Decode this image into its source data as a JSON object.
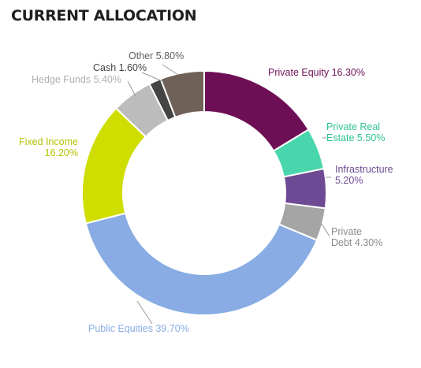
{
  "title": "CURRENT ALLOCATION",
  "chart_data": {
    "type": "pie",
    "title": "CURRENT ALLOCATION",
    "donut": true,
    "legend": "none",
    "unit": "%",
    "slices": [
      {
        "name": "Private Equity",
        "value": 16.3,
        "display": "16.30%",
        "color": "#6e0f56",
        "label_color": "#6e0f56",
        "label_lines": [
          "Private Equity 16.30%"
        ]
      },
      {
        "name": "Private Real Estate",
        "value": 5.5,
        "display": "5.50%",
        "color": "#49d6ac",
        "label_color": "#2fc496",
        "label_lines": [
          "Private Real",
          "Estate 5.50%"
        ]
      },
      {
        "name": "Infrastructure",
        "value": 5.2,
        "display": "5.20%",
        "color": "#6d4a93",
        "label_color": "#6d4a93",
        "label_lines": [
          "Infrastructure",
          "5.20%"
        ]
      },
      {
        "name": "Private Debt",
        "value": 4.3,
        "display": "4.30%",
        "color": "#a5a5a5",
        "label_color": "#8a8a8a",
        "label_lines": [
          "Private",
          "Debt 4.30%"
        ]
      },
      {
        "name": "Public Equities",
        "value": 39.7,
        "display": "39.70%",
        "color": "#88ace3",
        "label_color": "#88ace3",
        "label_lines": [
          "Public Equities 39.70%"
        ]
      },
      {
        "name": "Fixed Income",
        "value": 16.2,
        "display": "16.20%",
        "color": "#d0dd00",
        "label_color": "#b5c200",
        "label_lines": [
          "Fixed Income",
          "16.20%"
        ]
      },
      {
        "name": "Hedge Funds",
        "value": 5.4,
        "display": "5.40%",
        "color": "#bdbcbc",
        "label_color": "#b0b0b0",
        "label_lines": [
          "Hedge Funds 5.40%"
        ]
      },
      {
        "name": "Cash",
        "value": 1.6,
        "display": "1.60%",
        "color": "#444444",
        "label_color": "#444444",
        "label_lines": [
          "Cash 1.60%"
        ]
      },
      {
        "name": "Other",
        "value": 5.8,
        "display": "5.80%",
        "color": "#6f6157",
        "label_color": "#5f5f5f",
        "label_lines": [
          "Other 5.80%"
        ]
      }
    ]
  }
}
